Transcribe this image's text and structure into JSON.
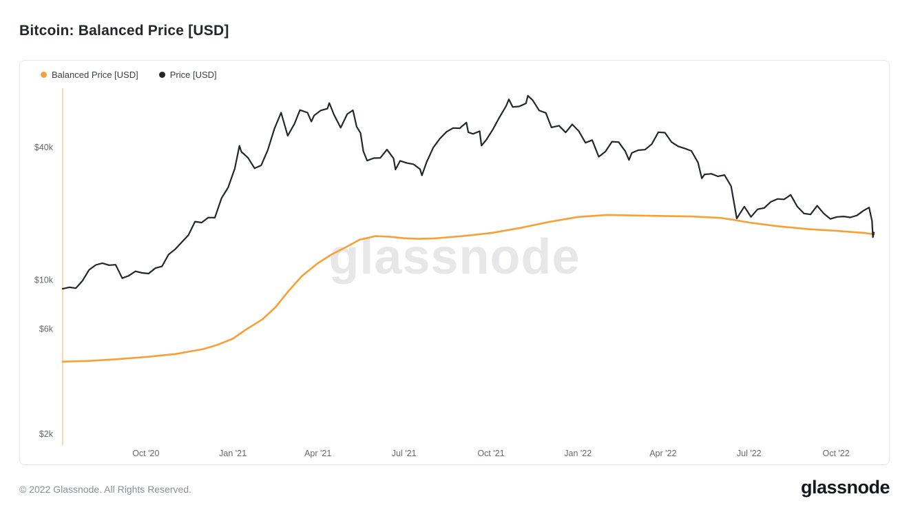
{
  "page": {
    "title": "Bitcoin: Balanced Price [USD]",
    "watermark": "glassnode",
    "footer": {
      "copyright": "© 2022 Glassnode. All Rights Reserved.",
      "logo": "glassnode"
    }
  },
  "colors": {
    "balanced_price": "#f7a035",
    "price": "#23262d",
    "axis_line": "#f8d9ae",
    "tick_text": "#636973",
    "watermark": "#e7e7ea"
  },
  "chart_data": {
    "type": "line",
    "title": "Bitcoin: Balanced Price [USD]",
    "y_scale": "log",
    "grid": false,
    "legend_position": "top-left",
    "y_domain": [
      1800,
      70000
    ],
    "x_domain": [
      "2020-07-05",
      "2022-11-10"
    ],
    "y_ticks": [
      {
        "label": "$40k",
        "value": 40000
      },
      {
        "label": "$10k",
        "value": 10000
      },
      {
        "label": "$6k",
        "value": 6000
      },
      {
        "label": "$2k",
        "value": 2000
      }
    ],
    "x_ticks": [
      {
        "label": "Oct '20",
        "date": "2020-10-01"
      },
      {
        "label": "Jan '21",
        "date": "2021-01-01"
      },
      {
        "label": "Apr '21",
        "date": "2021-04-01"
      },
      {
        "label": "Jul '21",
        "date": "2021-07-01"
      },
      {
        "label": "Oct '21",
        "date": "2021-10-01"
      },
      {
        "label": "Jan '22",
        "date": "2022-01-01"
      },
      {
        "label": "Apr '22",
        "date": "2022-04-01"
      },
      {
        "label": "Jul '22",
        "date": "2022-07-01"
      },
      {
        "label": "Oct '22",
        "date": "2022-10-01"
      }
    ],
    "series": [
      {
        "name": "Balanced Price [USD]",
        "id": "balanced-price",
        "color": "#f7a035",
        "width": 2.6,
        "points": [
          [
            "2020-07-05",
            4250
          ],
          [
            "2020-08-01",
            4280
          ],
          [
            "2020-09-01",
            4360
          ],
          [
            "2020-10-01",
            4460
          ],
          [
            "2020-11-01",
            4600
          ],
          [
            "2020-12-01",
            4850
          ],
          [
            "2020-12-15",
            5050
          ],
          [
            "2021-01-01",
            5400
          ],
          [
            "2021-01-15",
            5950
          ],
          [
            "2021-02-01",
            6600
          ],
          [
            "2021-02-15",
            7500
          ],
          [
            "2021-03-01",
            8900
          ],
          [
            "2021-03-15",
            10400
          ],
          [
            "2021-04-01",
            11900
          ],
          [
            "2021-04-15",
            13000
          ],
          [
            "2021-05-01",
            14100
          ],
          [
            "2021-05-15",
            15200
          ],
          [
            "2021-06-01",
            15800
          ],
          [
            "2021-06-15",
            15700
          ],
          [
            "2021-07-01",
            15450
          ],
          [
            "2021-07-15",
            15350
          ],
          [
            "2021-08-01",
            15400
          ],
          [
            "2021-09-01",
            15800
          ],
          [
            "2021-10-01",
            16300
          ],
          [
            "2021-11-01",
            17200
          ],
          [
            "2021-12-01",
            18300
          ],
          [
            "2022-01-01",
            19300
          ],
          [
            "2022-02-01",
            19700
          ],
          [
            "2022-03-01",
            19600
          ],
          [
            "2022-04-01",
            19500
          ],
          [
            "2022-05-01",
            19400
          ],
          [
            "2022-06-01",
            19100
          ],
          [
            "2022-06-15",
            18700
          ],
          [
            "2022-07-01",
            18200
          ],
          [
            "2022-08-01",
            17500
          ],
          [
            "2022-09-01",
            17000
          ],
          [
            "2022-10-01",
            16700
          ],
          [
            "2022-11-01",
            16300
          ],
          [
            "2022-11-10",
            16100
          ]
        ]
      },
      {
        "name": "Price [USD]",
        "id": "price",
        "color": "#23262d",
        "width": 2.2,
        "points": [
          [
            "2020-07-05",
            9100
          ],
          [
            "2020-07-12",
            9250
          ],
          [
            "2020-07-19",
            9160
          ],
          [
            "2020-07-26",
            9900
          ],
          [
            "2020-08-02",
            11100
          ],
          [
            "2020-08-09",
            11680
          ],
          [
            "2020-08-16",
            11900
          ],
          [
            "2020-08-23",
            11650
          ],
          [
            "2020-08-30",
            11700
          ],
          [
            "2020-09-06",
            10170
          ],
          [
            "2020-09-13",
            10440
          ],
          [
            "2020-09-20",
            10930
          ],
          [
            "2020-09-27",
            10750
          ],
          [
            "2020-10-04",
            10670
          ],
          [
            "2020-10-11",
            11300
          ],
          [
            "2020-10-18",
            11500
          ],
          [
            "2020-10-25",
            13030
          ],
          [
            "2020-11-01",
            13760
          ],
          [
            "2020-11-08",
            14830
          ],
          [
            "2020-11-15",
            15960
          ],
          [
            "2020-11-22",
            18370
          ],
          [
            "2020-11-29",
            18190
          ],
          [
            "2020-12-06",
            19170
          ],
          [
            "2020-12-13",
            19140
          ],
          [
            "2020-12-20",
            23480
          ],
          [
            "2020-12-27",
            26280
          ],
          [
            "2021-01-03",
            31980
          ],
          [
            "2021-01-08",
            40600
          ],
          [
            "2021-01-10",
            38150
          ],
          [
            "2021-01-17",
            35830
          ],
          [
            "2021-01-24",
            32090
          ],
          [
            "2021-01-31",
            33110
          ],
          [
            "2021-02-07",
            38880
          ],
          [
            "2021-02-14",
            48580
          ],
          [
            "2021-02-21",
            57410
          ],
          [
            "2021-02-28",
            45140
          ],
          [
            "2021-03-07",
            50960
          ],
          [
            "2021-03-13",
            59000
          ],
          [
            "2021-03-21",
            57410
          ],
          [
            "2021-03-25",
            52300
          ],
          [
            "2021-03-28",
            55780
          ],
          [
            "2021-04-04",
            58750
          ],
          [
            "2021-04-11",
            59850
          ],
          [
            "2021-04-13",
            63500
          ],
          [
            "2021-04-18",
            56200
          ],
          [
            "2021-04-25",
            49080
          ],
          [
            "2021-05-02",
            56600
          ],
          [
            "2021-05-08",
            58900
          ],
          [
            "2021-05-12",
            49500
          ],
          [
            "2021-05-16",
            46450
          ],
          [
            "2021-05-19",
            38400
          ],
          [
            "2021-05-23",
            34770
          ],
          [
            "2021-05-30",
            35680
          ],
          [
            "2021-06-06",
            35800
          ],
          [
            "2021-06-13",
            39020
          ],
          [
            "2021-06-20",
            35600
          ],
          [
            "2021-06-22",
            31700
          ],
          [
            "2021-06-27",
            34700
          ],
          [
            "2021-07-04",
            33900
          ],
          [
            "2021-07-11",
            33500
          ],
          [
            "2021-07-18",
            31800
          ],
          [
            "2021-07-20",
            29800
          ],
          [
            "2021-07-25",
            34300
          ],
          [
            "2021-08-01",
            39870
          ],
          [
            "2021-08-08",
            43790
          ],
          [
            "2021-08-15",
            47000
          ],
          [
            "2021-08-22",
            48900
          ],
          [
            "2021-08-29",
            48800
          ],
          [
            "2021-09-05",
            51800
          ],
          [
            "2021-09-07",
            46800
          ],
          [
            "2021-09-12",
            46000
          ],
          [
            "2021-09-19",
            47300
          ],
          [
            "2021-09-21",
            40700
          ],
          [
            "2021-09-26",
            43200
          ],
          [
            "2021-10-03",
            48200
          ],
          [
            "2021-10-10",
            54700
          ],
          [
            "2021-10-17",
            61500
          ],
          [
            "2021-10-20",
            66000
          ],
          [
            "2021-10-24",
            60900
          ],
          [
            "2021-10-31",
            61300
          ],
          [
            "2021-11-07",
            63300
          ],
          [
            "2021-11-09",
            68500
          ],
          [
            "2021-11-14",
            65500
          ],
          [
            "2021-11-21",
            58700
          ],
          [
            "2021-11-28",
            57300
          ],
          [
            "2021-12-04",
            49200
          ],
          [
            "2021-12-12",
            50100
          ],
          [
            "2021-12-19",
            46700
          ],
          [
            "2021-12-26",
            50800
          ],
          [
            "2022-01-02",
            47300
          ],
          [
            "2022-01-09",
            41900
          ],
          [
            "2022-01-16",
            43100
          ],
          [
            "2022-01-23",
            36200
          ],
          [
            "2022-01-30",
            38200
          ],
          [
            "2022-02-06",
            42400
          ],
          [
            "2022-02-13",
            42200
          ],
          [
            "2022-02-20",
            38400
          ],
          [
            "2022-02-24",
            35000
          ],
          [
            "2022-02-27",
            37700
          ],
          [
            "2022-03-06",
            38800
          ],
          [
            "2022-03-13",
            39000
          ],
          [
            "2022-03-20",
            41300
          ],
          [
            "2022-03-27",
            46800
          ],
          [
            "2022-04-03",
            46600
          ],
          [
            "2022-04-10",
            42200
          ],
          [
            "2022-04-17",
            40400
          ],
          [
            "2022-04-24",
            39500
          ],
          [
            "2022-05-01",
            38500
          ],
          [
            "2022-05-08",
            34100
          ],
          [
            "2022-05-12",
            28900
          ],
          [
            "2022-05-15",
            30100
          ],
          [
            "2022-05-22",
            30300
          ],
          [
            "2022-05-29",
            29500
          ],
          [
            "2022-06-05",
            29900
          ],
          [
            "2022-06-12",
            26600
          ],
          [
            "2022-06-15",
            22500
          ],
          [
            "2022-06-18",
            19000
          ],
          [
            "2022-06-26",
            21500
          ],
          [
            "2022-07-03",
            19300
          ],
          [
            "2022-07-10",
            20900
          ],
          [
            "2022-07-17",
            21200
          ],
          [
            "2022-07-24",
            22600
          ],
          [
            "2022-07-31",
            23300
          ],
          [
            "2022-08-07",
            23200
          ],
          [
            "2022-08-14",
            24300
          ],
          [
            "2022-08-21",
            21500
          ],
          [
            "2022-08-28",
            20000
          ],
          [
            "2022-09-04",
            19800
          ],
          [
            "2022-09-11",
            21700
          ],
          [
            "2022-09-18",
            20000
          ],
          [
            "2022-09-25",
            18900
          ],
          [
            "2022-10-02",
            19300
          ],
          [
            "2022-10-09",
            19400
          ],
          [
            "2022-10-16",
            19200
          ],
          [
            "2022-10-23",
            19600
          ],
          [
            "2022-10-30",
            20600
          ],
          [
            "2022-11-05",
            21300
          ],
          [
            "2022-11-08",
            18500
          ],
          [
            "2022-11-09",
            15600
          ],
          [
            "2022-11-10",
            16400
          ]
        ]
      }
    ]
  }
}
